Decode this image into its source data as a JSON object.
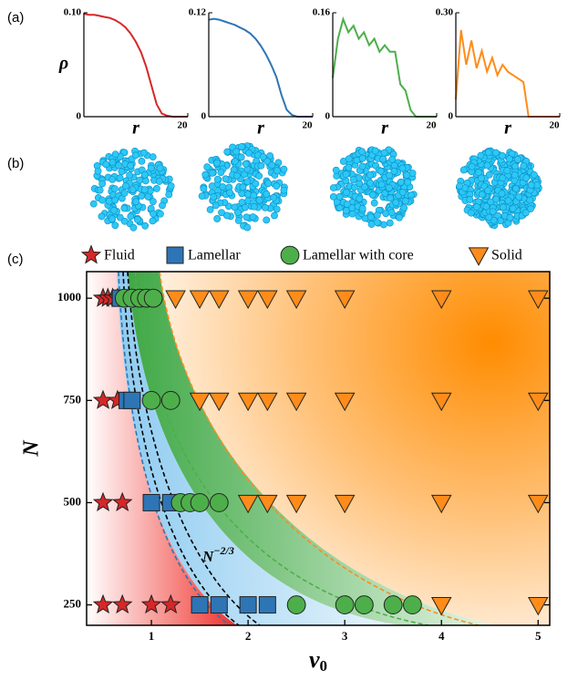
{
  "panel_labels": [
    "(a)",
    "(b)",
    "(c)"
  ],
  "chart_data": [
    {
      "type": "line",
      "ylabel": "ρ",
      "xlabel": "r",
      "xlim": [
        0,
        20
      ],
      "xticks": [
        20
      ],
      "ylim": [
        0,
        0.1
      ],
      "yticks": [
        0,
        {
          "value": 0.1,
          "label": "0.10"
        }
      ],
      "x": [
        0,
        1,
        2,
        3,
        4,
        5,
        6,
        7,
        8,
        9,
        10,
        11,
        12,
        13,
        14,
        15,
        16,
        17,
        18,
        19,
        20
      ],
      "series": [
        {
          "color": "#d62728",
          "values": [
            0.099,
            0.098,
            0.098,
            0.097,
            0.096,
            0.095,
            0.093,
            0.09,
            0.086,
            0.08,
            0.072,
            0.062,
            0.048,
            0.03,
            0.012,
            0.003,
            0.001,
            0,
            0,
            0,
            0
          ]
        }
      ]
    },
    {
      "type": "line",
      "xlabel": "r",
      "xlim": [
        0,
        20
      ],
      "xticks": [
        20
      ],
      "ylim": [
        0,
        0.12
      ],
      "yticks": [
        0,
        0.12
      ],
      "x": [
        0,
        1,
        2,
        3,
        4,
        5,
        6,
        7,
        8,
        9,
        10,
        11,
        12,
        13,
        14,
        15,
        16,
        17,
        18,
        19,
        20
      ],
      "series": [
        {
          "color": "#2e75b6",
          "values": [
            0.112,
            0.113,
            0.112,
            0.11,
            0.108,
            0.106,
            0.103,
            0.1,
            0.096,
            0.09,
            0.082,
            0.072,
            0.06,
            0.046,
            0.025,
            0.008,
            0.002,
            0,
            0,
            0,
            0
          ]
        }
      ]
    },
    {
      "type": "line",
      "xlabel": "r",
      "xlim": [
        0,
        20
      ],
      "xticks": [
        20
      ],
      "ylim": [
        0,
        0.16
      ],
      "yticks": [
        0,
        0.16
      ],
      "x": [
        0,
        1,
        2,
        3,
        4,
        5,
        6,
        7,
        8,
        9,
        10,
        11,
        12,
        13,
        14,
        15,
        16,
        17,
        18,
        19,
        20
      ],
      "series": [
        {
          "color": "#4daf4a",
          "values": [
            0.06,
            0.12,
            0.15,
            0.13,
            0.14,
            0.12,
            0.13,
            0.11,
            0.12,
            0.1,
            0.11,
            0.1,
            0.1,
            0.05,
            0.04,
            0.01,
            0,
            0,
            0,
            0,
            0
          ]
        }
      ]
    },
    {
      "type": "line",
      "xlabel": "r",
      "xlim": [
        0,
        20
      ],
      "xticks": [
        20
      ],
      "ylim": [
        0,
        0.3
      ],
      "yticks": [
        0,
        {
          "value": 0.3,
          "label": "0.30"
        }
      ],
      "x": [
        0,
        1,
        2,
        3,
        4,
        5,
        6,
        7,
        8,
        9,
        10,
        11,
        12,
        13,
        14,
        15,
        16,
        17,
        18,
        19,
        20
      ],
      "series": [
        {
          "color": "#ff8c1a",
          "values": [
            0.05,
            0.25,
            0.15,
            0.22,
            0.14,
            0.19,
            0.13,
            0.17,
            0.12,
            0.15,
            0.13,
            0.12,
            0.11,
            0.1,
            0,
            0,
            0,
            0,
            0,
            0,
            0
          ]
        }
      ]
    },
    {
      "type": "scatter",
      "xlabel": {
        "base": "v",
        "subscript": "0"
      },
      "ylabel": "N",
      "annotation": {
        "base": "N",
        "exponent": "−2/3"
      },
      "xlim": [
        0.33,
        5.12
      ],
      "xticks": [
        1,
        2,
        3,
        4,
        5
      ],
      "ylim": [
        200,
        1065
      ],
      "yticks": [
        250,
        500,
        750,
        1000
      ],
      "legend": "top",
      "series": [
        {
          "name": "Fluid",
          "marker": "star",
          "color": "#d62728",
          "x": [
            0.5,
            0.55,
            0.6,
            0.65,
            0.5,
            0.65,
            0.5,
            0.7,
            0.5,
            0.7,
            1.0,
            1.2
          ],
          "values": [
            1000,
            1000,
            1000,
            1000,
            750,
            750,
            500,
            500,
            250,
            250,
            250,
            250
          ]
        },
        {
          "name": "Lamellar",
          "marker": "square",
          "color": "#2e75b6",
          "x": [
            0.68,
            0.75,
            0.8,
            1.0,
            1.2,
            1.5,
            1.7,
            2.0,
            2.2
          ],
          "values": [
            1000,
            750,
            750,
            500,
            500,
            250,
            250,
            250,
            250
          ]
        },
        {
          "name": "Lamellar with core",
          "marker": "circle",
          "color": "#4daf4a",
          "x": [
            0.72,
            0.8,
            0.88,
            0.95,
            1.02,
            1.0,
            1.2,
            1.3,
            1.4,
            1.5,
            1.7,
            2.5,
            3.0,
            3.2,
            3.5,
            3.7
          ],
          "values": [
            1000,
            1000,
            1000,
            1000,
            1000,
            750,
            750,
            500,
            500,
            500,
            500,
            250,
            250,
            250,
            250,
            250
          ]
        },
        {
          "name": "Solid",
          "marker": "triangle",
          "color": "#ff8c1a",
          "x": [
            1.25,
            1.5,
            1.7,
            2.0,
            2.2,
            2.5,
            3.0,
            4.0,
            5.0,
            1.5,
            1.7,
            2.0,
            2.2,
            2.5,
            3.0,
            4.0,
            5.0,
            2.0,
            2.2,
            2.5,
            3.0,
            4.0,
            5.0,
            4.0,
            5.0
          ],
          "values": [
            1000,
            1000,
            1000,
            1000,
            1000,
            1000,
            1000,
            1000,
            1000,
            750,
            750,
            750,
            750,
            750,
            750,
            750,
            750,
            500,
            500,
            500,
            500,
            500,
            500,
            250,
            250
          ]
        }
      ]
    }
  ]
}
